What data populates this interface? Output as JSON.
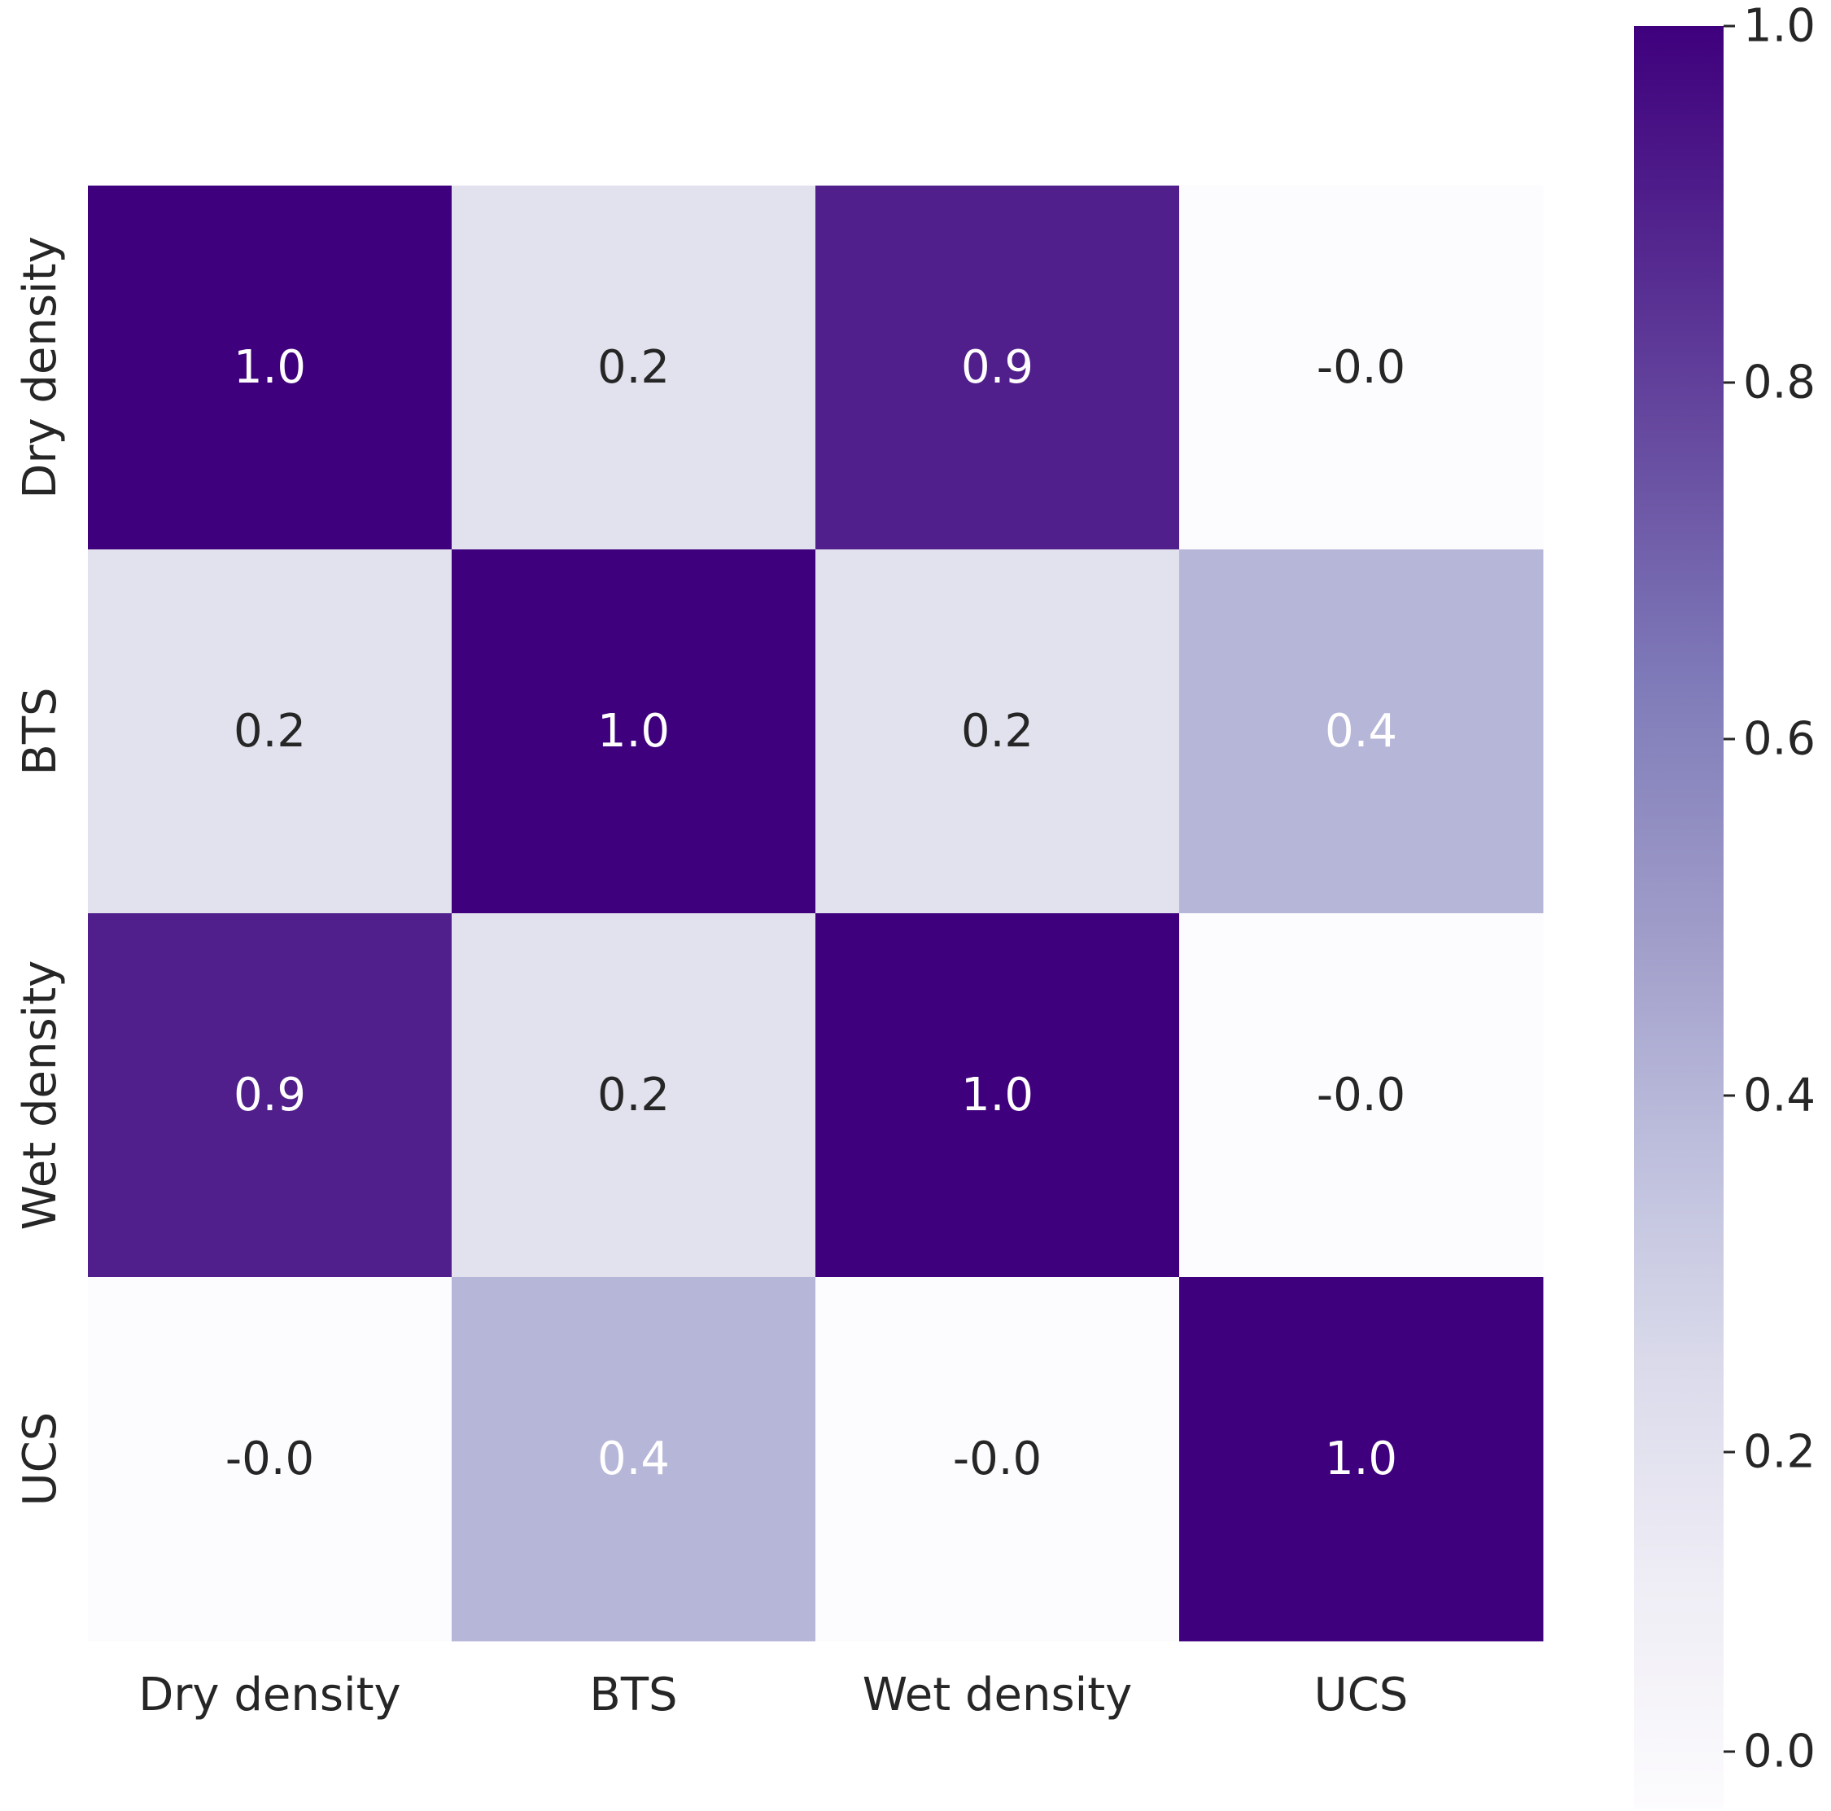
{
  "chart_data": {
    "type": "heatmap",
    "rows": [
      "Dry density",
      "BTS",
      "Wet density",
      "UCS"
    ],
    "columns": [
      "Dry density",
      "BTS",
      "Wet density",
      "UCS"
    ],
    "values": [
      [
        1.0,
        0.2,
        0.9,
        -0.0
      ],
      [
        0.2,
        1.0,
        0.2,
        0.4
      ],
      [
        0.9,
        0.2,
        1.0,
        -0.0
      ],
      [
        -0.0,
        0.4,
        -0.0,
        1.0
      ]
    ],
    "value_labels": [
      [
        "1.0",
        "0.2",
        "0.9",
        "-0.0"
      ],
      [
        "0.2",
        "1.0",
        "0.2",
        "0.4"
      ],
      [
        "0.9",
        "0.2",
        "1.0",
        "-0.0"
      ],
      [
        "-0.0",
        "0.4",
        "-0.0",
        "1.0"
      ]
    ],
    "colormap": "Purples",
    "colormap_stops": [
      "#fcfbfd",
      "#efedf5",
      "#dadaeb",
      "#bcbddc",
      "#9e9ac8",
      "#807dba",
      "#6a51a3",
      "#54278f",
      "#3f007d"
    ],
    "vmin": 0.0,
    "vmax": 1.0,
    "colorbar": {
      "ticks": [
        0.0,
        0.2,
        0.4,
        0.6,
        0.8,
        1.0
      ],
      "tick_labels": [
        "0.0",
        "0.2",
        "0.4",
        "0.6",
        "0.8",
        "1.0"
      ]
    },
    "title": "",
    "xlabel": "",
    "ylabel": ""
  }
}
